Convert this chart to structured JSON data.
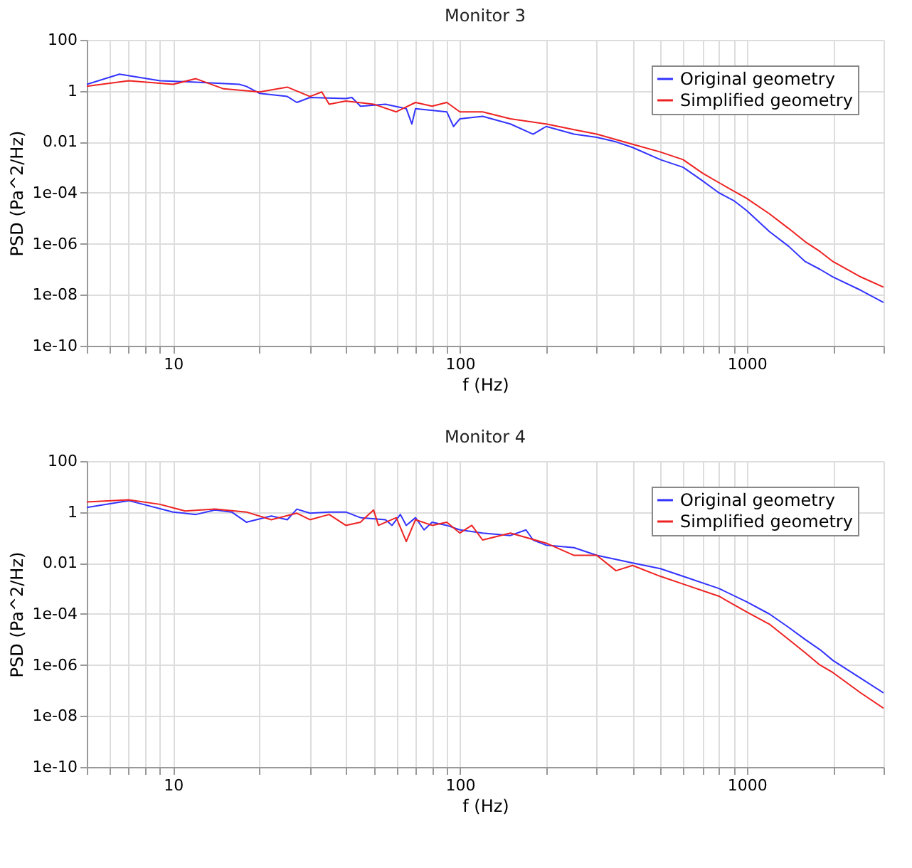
{
  "chart_data": [
    {
      "type": "line",
      "title": "Monitor 3",
      "xlabel": "f (Hz)",
      "ylabel": "PSD (Pa^2/Hz)",
      "log": "xy",
      "grid": true,
      "legend": "top right",
      "xlim": [
        5,
        3000
      ],
      "ylim": [
        1e-10,
        100
      ],
      "xticks": [
        {
          "value": 5,
          "label": null
        },
        {
          "value": 6,
          "label": null
        },
        {
          "value": 7,
          "label": null
        },
        {
          "value": 8,
          "label": null
        },
        {
          "value": 9,
          "label": null
        },
        10,
        {
          "value": 20,
          "label": null
        },
        {
          "value": 30,
          "label": null
        },
        {
          "value": 40,
          "label": null
        },
        {
          "value": 50,
          "label": null
        },
        {
          "value": 60,
          "label": null
        },
        {
          "value": 70,
          "label": null
        },
        {
          "value": 80,
          "label": null
        },
        {
          "value": 90,
          "label": null
        },
        100,
        {
          "value": 200,
          "label": null
        },
        {
          "value": 300,
          "label": null
        },
        {
          "value": 400,
          "label": null
        },
        {
          "value": 500,
          "label": null
        },
        {
          "value": 600,
          "label": null
        },
        {
          "value": 700,
          "label": null
        },
        {
          "value": 800,
          "label": null
        },
        {
          "value": 900,
          "label": null
        },
        1000,
        {
          "value": 2000,
          "label": null
        },
        {
          "value": 3000,
          "label": null
        }
      ],
      "yticks": [
        {
          "value": 1e-10,
          "label": "1e-10"
        },
        {
          "value": 1e-08,
          "label": "1e-08"
        },
        {
          "value": 1e-06,
          "label": "1e-06"
        },
        {
          "value": 0.0001,
          "label": "1e-04"
        },
        0.01,
        1,
        100
      ],
      "series": [
        {
          "name": "Original geometry",
          "color": "#3333ff",
          "x": [
            5,
            6.5,
            9,
            12,
            17,
            18,
            20,
            25,
            27,
            30,
            40,
            42,
            45,
            55,
            65,
            68,
            70,
            90,
            95,
            100,
            120,
            150,
            180,
            200,
            250,
            300,
            350,
            400,
            500,
            600,
            700,
            800,
            900,
            1000,
            1200,
            1400,
            1600,
            1800,
            2000,
            2500,
            3000
          ],
          "values": [
            1.8,
            4.5,
            2.5,
            2.2,
            1.8,
            1.5,
            0.8,
            0.6,
            0.35,
            0.55,
            0.5,
            0.55,
            0.25,
            0.3,
            0.2,
            0.05,
            0.2,
            0.15,
            0.04,
            0.08,
            0.1,
            0.05,
            0.02,
            0.04,
            0.02,
            0.015,
            0.01,
            0.006,
            0.002,
            0.001,
            0.0003,
            0.0001,
            5e-05,
            2e-05,
            3e-06,
            8e-07,
            2e-07,
            1e-07,
            5e-08,
            1.5e-08,
            5e-09
          ]
        },
        {
          "name": "Simplified geometry",
          "color": "#ee2222",
          "x": [
            5,
            7,
            10,
            12,
            15,
            20,
            25,
            30,
            33,
            35,
            40,
            50,
            60,
            70,
            80,
            90,
            100,
            120,
            150,
            200,
            250,
            300,
            400,
            500,
            600,
            700,
            800,
            1000,
            1200,
            1400,
            1600,
            1800,
            2000,
            2500,
            3000
          ],
          "values": [
            1.5,
            2.5,
            1.8,
            3,
            1.2,
            0.9,
            1.4,
            0.6,
            0.9,
            0.3,
            0.4,
            0.3,
            0.15,
            0.35,
            0.25,
            0.35,
            0.15,
            0.15,
            0.08,
            0.05,
            0.03,
            0.02,
            0.008,
            0.004,
            0.002,
            0.0006,
            0.00025,
            6e-05,
            1.5e-05,
            4e-06,
            1.2e-06,
            5e-07,
            2e-07,
            5e-08,
            2e-08
          ]
        }
      ]
    },
    {
      "type": "line",
      "title": "Monitor 4",
      "xlabel": "f (Hz)",
      "ylabel": "PSD (Pa^2/Hz)",
      "log": "xy",
      "grid": true,
      "legend": "top right",
      "xlim": [
        5,
        3000
      ],
      "ylim": [
        1e-10,
        100
      ],
      "xticks": [
        {
          "value": 5,
          "label": null
        },
        {
          "value": 6,
          "label": null
        },
        {
          "value": 7,
          "label": null
        },
        {
          "value": 8,
          "label": null
        },
        {
          "value": 9,
          "label": null
        },
        10,
        {
          "value": 20,
          "label": null
        },
        {
          "value": 30,
          "label": null
        },
        {
          "value": 40,
          "label": null
        },
        {
          "value": 50,
          "label": null
        },
        {
          "value": 60,
          "label": null
        },
        {
          "value": 70,
          "label": null
        },
        {
          "value": 80,
          "label": null
        },
        {
          "value": 90,
          "label": null
        },
        100,
        {
          "value": 200,
          "label": null
        },
        {
          "value": 300,
          "label": null
        },
        {
          "value": 400,
          "label": null
        },
        {
          "value": 500,
          "label": null
        },
        {
          "value": 600,
          "label": null
        },
        {
          "value": 700,
          "label": null
        },
        {
          "value": 800,
          "label": null
        },
        {
          "value": 900,
          "label": null
        },
        1000,
        {
          "value": 2000,
          "label": null
        },
        {
          "value": 3000,
          "label": null
        }
      ],
      "yticks": [
        {
          "value": 1e-10,
          "label": "1e-10"
        },
        {
          "value": 1e-08,
          "label": "1e-08"
        },
        {
          "value": 1e-06,
          "label": "1e-06"
        },
        {
          "value": 0.0001,
          "label": "1e-04"
        },
        0.01,
        1,
        100
      ],
      "series": [
        {
          "name": "Original geometry",
          "color": "#3333ff",
          "x": [
            5,
            7,
            10,
            12,
            14,
            16,
            18,
            22,
            25,
            27,
            30,
            35,
            40,
            45,
            55,
            58,
            62,
            65,
            70,
            75,
            80,
            90,
            100,
            120,
            150,
            170,
            180,
            200,
            250,
            300,
            400,
            500,
            600,
            800,
            1000,
            1200,
            1400,
            1600,
            1800,
            2000,
            2500,
            3000
          ],
          "values": [
            1.5,
            2.8,
            1,
            0.8,
            1.2,
            1,
            0.4,
            0.7,
            0.5,
            1.3,
            0.9,
            1,
            1,
            0.6,
            0.5,
            0.3,
            0.8,
            0.3,
            0.6,
            0.2,
            0.4,
            0.3,
            0.2,
            0.15,
            0.12,
            0.2,
            0.08,
            0.05,
            0.04,
            0.02,
            0.01,
            0.006,
            0.003,
            0.001,
            0.0003,
            0.0001,
            3e-05,
            1e-05,
            4e-06,
            1.5e-06,
            3e-07,
            8e-08
          ]
        },
        {
          "name": "Simplified geometry",
          "color": "#ee2222",
          "x": [
            5,
            7,
            9,
            11,
            14,
            18,
            22,
            27,
            30,
            35,
            40,
            45,
            50,
            52,
            60,
            65,
            70,
            80,
            90,
            100,
            110,
            120,
            150,
            200,
            250,
            300,
            350,
            400,
            500,
            600,
            800,
            1000,
            1200,
            1400,
            1600,
            1800,
            2000,
            2500,
            3000
          ],
          "values": [
            2.5,
            3,
            2,
            1.1,
            1.3,
            1,
            0.5,
            0.9,
            0.5,
            0.8,
            0.3,
            0.4,
            1.2,
            0.3,
            0.6,
            0.07,
            0.5,
            0.3,
            0.4,
            0.15,
            0.3,
            0.08,
            0.15,
            0.06,
            0.02,
            0.02,
            0.005,
            0.008,
            0.003,
            0.0015,
            0.0005,
            0.00012,
            4e-05,
            1e-05,
            3e-06,
            1e-06,
            5e-07,
            8e-08,
            2e-08
          ]
        }
      ]
    }
  ]
}
